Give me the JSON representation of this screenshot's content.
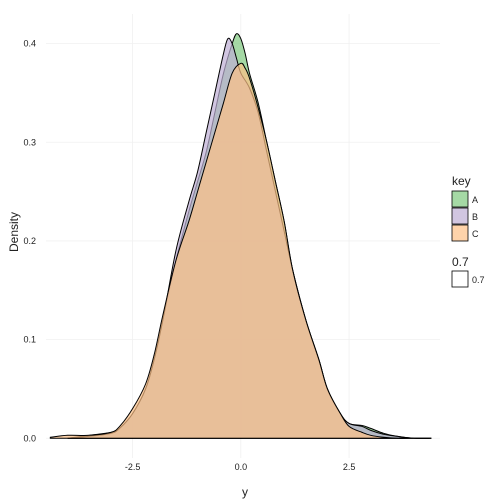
{
  "chart_data": {
    "type": "area",
    "title": "",
    "xlabel": "y",
    "ylabel": "Density",
    "xlim": [
      -4.5,
      4.6
    ],
    "ylim": [
      -0.02,
      0.43
    ],
    "xticks": [
      -2.5,
      0.0,
      2.5
    ],
    "xtick_labels": [
      "-2.5",
      "0.0",
      "2.5"
    ],
    "yticks": [
      0.0,
      0.1,
      0.2,
      0.3,
      0.4
    ],
    "ytick_labels": [
      "0.0",
      "0.1",
      "0.2",
      "0.3",
      "0.4"
    ],
    "grid": true,
    "alpha": 0.7,
    "legend": {
      "position": "right",
      "fill_title": "key",
      "alpha_title": "0.7",
      "alpha_label": "0.7"
    },
    "series": [
      {
        "name": "A",
        "color": "#7fc97f",
        "x": [
          -4.0,
          -3.5,
          -3.0,
          -2.8,
          -2.5,
          -2.2,
          -2.0,
          -1.8,
          -1.5,
          -1.2,
          -1.0,
          -0.8,
          -0.6,
          -0.4,
          -0.2,
          -0.1,
          0.0,
          0.1,
          0.2,
          0.4,
          0.6,
          0.8,
          1.0,
          1.2,
          1.5,
          1.8,
          2.0,
          2.3,
          2.5,
          2.8,
          3.0,
          3.3,
          3.6,
          4.0,
          4.4
        ],
        "y": [
          0.0,
          0.003,
          0.006,
          0.01,
          0.025,
          0.05,
          0.08,
          0.12,
          0.18,
          0.23,
          0.26,
          0.29,
          0.33,
          0.37,
          0.4,
          0.41,
          0.405,
          0.39,
          0.37,
          0.34,
          0.3,
          0.26,
          0.22,
          0.17,
          0.12,
          0.08,
          0.05,
          0.025,
          0.015,
          0.013,
          0.01,
          0.005,
          0.002,
          0.0,
          0.0
        ]
      },
      {
        "name": "B",
        "color": "#beaed4",
        "x": [
          -4.0,
          -3.5,
          -3.0,
          -2.8,
          -2.5,
          -2.2,
          -2.0,
          -1.8,
          -1.5,
          -1.2,
          -1.0,
          -0.8,
          -0.6,
          -0.4,
          -0.3,
          -0.2,
          -0.1,
          0.0,
          0.2,
          0.4,
          0.6,
          0.8,
          1.0,
          1.2,
          1.5,
          1.8,
          2.0,
          2.3,
          2.5,
          2.8,
          3.0,
          3.3,
          3.6,
          4.0,
          4.4
        ],
        "y": [
          0.0,
          0.002,
          0.005,
          0.01,
          0.025,
          0.05,
          0.08,
          0.12,
          0.19,
          0.24,
          0.27,
          0.31,
          0.35,
          0.39,
          0.405,
          0.4,
          0.385,
          0.37,
          0.355,
          0.33,
          0.29,
          0.25,
          0.21,
          0.17,
          0.12,
          0.08,
          0.05,
          0.025,
          0.015,
          0.012,
          0.008,
          0.004,
          0.002,
          0.0,
          0.0
        ]
      },
      {
        "name": "C",
        "color": "#fdc086",
        "x": [
          -4.4,
          -4.0,
          -3.5,
          -3.0,
          -2.8,
          -2.5,
          -2.2,
          -2.0,
          -1.8,
          -1.5,
          -1.2,
          -1.0,
          -0.8,
          -0.6,
          -0.4,
          -0.2,
          0.0,
          0.1,
          0.2,
          0.4,
          0.6,
          0.8,
          1.0,
          1.2,
          1.5,
          1.8,
          2.0,
          2.3,
          2.5,
          2.8,
          3.0,
          3.3,
          3.6,
          4.0,
          4.4
        ],
        "y": [
          0.001,
          0.003,
          0.003,
          0.006,
          0.012,
          0.03,
          0.055,
          0.085,
          0.125,
          0.18,
          0.22,
          0.25,
          0.28,
          0.31,
          0.34,
          0.37,
          0.38,
          0.375,
          0.365,
          0.335,
          0.3,
          0.26,
          0.22,
          0.17,
          0.12,
          0.08,
          0.05,
          0.025,
          0.012,
          0.006,
          0.003,
          0.001,
          0.0,
          0.0,
          0.0
        ]
      }
    ]
  }
}
